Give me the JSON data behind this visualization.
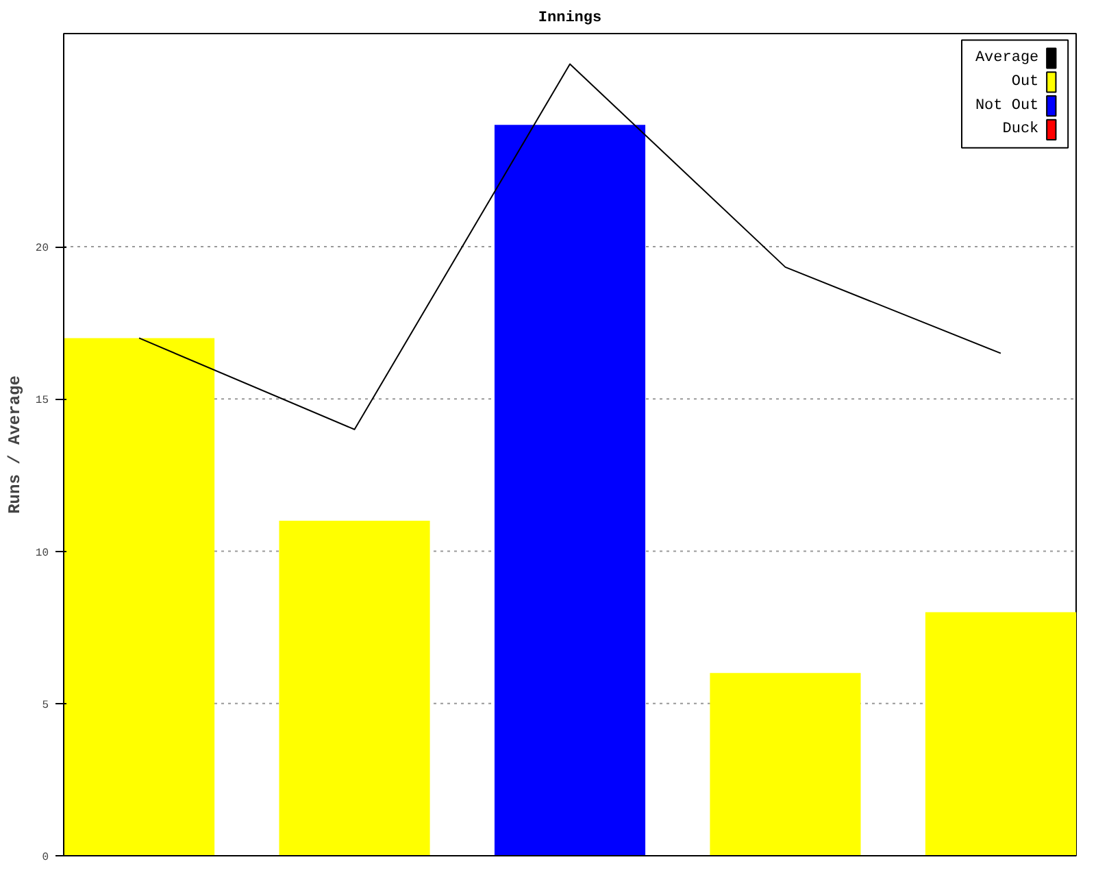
{
  "chart_data": {
    "type": "bar",
    "title": "Innings",
    "ylabel": "Runs / Average",
    "categories": [
      null,
      null,
      null,
      null,
      null
    ],
    "series": [
      {
        "name": "Average",
        "type": "line",
        "color": "#000000",
        "values": [
          17,
          14,
          26,
          19.33,
          16.5
        ]
      },
      {
        "name": "Out",
        "color": "#ffff00",
        "values": [
          17,
          11,
          null,
          6,
          8
        ]
      },
      {
        "name": "Not Out",
        "color": "#0000ff",
        "values": [
          null,
          null,
          24,
          null,
          null
        ]
      },
      {
        "name": "Duck",
        "color": "#ff0000",
        "values": [
          null,
          null,
          null,
          null,
          null
        ]
      }
    ],
    "ylim": [
      0,
      27
    ],
    "yticks": [
      0,
      5,
      10,
      15,
      20
    ],
    "grid": "y",
    "legend": "top right"
  }
}
